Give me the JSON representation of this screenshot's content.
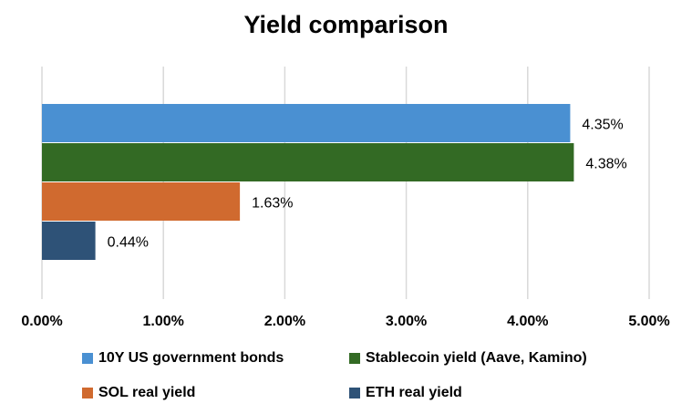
{
  "chart_data": {
    "type": "bar",
    "orientation": "horizontal",
    "title": "Yield comparison",
    "xlabel": "",
    "ylabel": "",
    "xlim": [
      0,
      0.05
    ],
    "grid": true,
    "legend_position": "bottom",
    "x_ticks": [
      "0.00%",
      "1.00%",
      "2.00%",
      "3.00%",
      "4.00%",
      "5.00%"
    ],
    "series": [
      {
        "name": "10Y US government bonds",
        "value": 0.0435,
        "label": "4.35%",
        "color": "#4A90D2"
      },
      {
        "name": "Stablecoin yield (Aave, Kamino)",
        "value": 0.0438,
        "label": "4.38%",
        "color": "#336A24"
      },
      {
        "name": "SOL real yield",
        "value": 0.0163,
        "label": "1.63%",
        "color": "#D06A2F"
      },
      {
        "name": "ETH real yield",
        "value": 0.0044,
        "label": "0.44%",
        "color": "#2E5277"
      }
    ]
  }
}
